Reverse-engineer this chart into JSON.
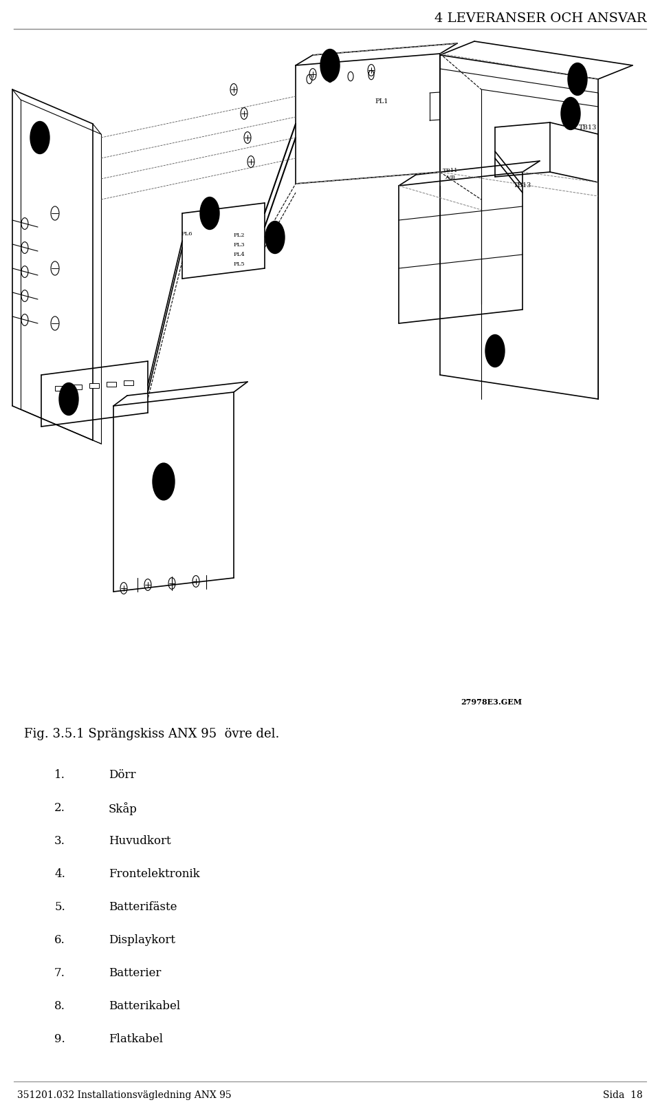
{
  "title": "4 LEVERANSER OCH ANSVAR",
  "footer_left": "351201.032 Installationsvägledning ANX 95",
  "footer_right": "Sida  18",
  "fig_caption": "Fig. 3.5.1 Sprängskiss ANX 95  övre del.",
  "diagram_label": "27978E3.GEM",
  "list_items": [
    {
      "num": "1.",
      "text": "Dörr"
    },
    {
      "num": "2.",
      "text": "Skåp"
    },
    {
      "num": "3.",
      "text": "Huvudkort"
    },
    {
      "num": "4.",
      "text": "Frontelektronik"
    },
    {
      "num": "5.",
      "text": "Batterifäste"
    },
    {
      "num": "6.",
      "text": "Displaykort"
    },
    {
      "num": "7.",
      "text": "Batterier"
    },
    {
      "num": "8.",
      "text": "Batterikabel"
    },
    {
      "num": "9.",
      "text": "Flatkabel"
    }
  ],
  "bg_color": "#ffffff",
  "text_color": "#000000",
  "title_fontsize": 14,
  "body_fontsize": 12,
  "caption_fontsize": 13
}
